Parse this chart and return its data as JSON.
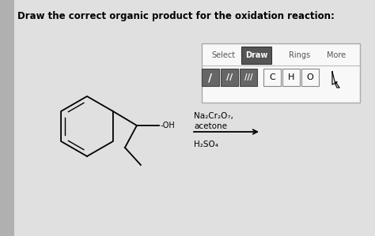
{
  "title": "Draw the correct organic product for the oxidation reaction:",
  "title_fontsize": 8.5,
  "bg_color": "#e0e0e0",
  "reagent_line1": "Na₂Cr₂O₇,",
  "reagent_line2": "acetone",
  "reagent_line3": "H₂SO₄",
  "fig_width": 4.74,
  "fig_height": 2.99,
  "dpi": 100,
  "left_bar_color": "#a0a0a0",
  "toolbar_bg": "#f5f5f5",
  "toolbar_border": "#aaaaaa",
  "draw_btn_bg": "#555555",
  "bond_btn_bg": "#cccccc",
  "elem_btn_bg": "#f5f5f5"
}
